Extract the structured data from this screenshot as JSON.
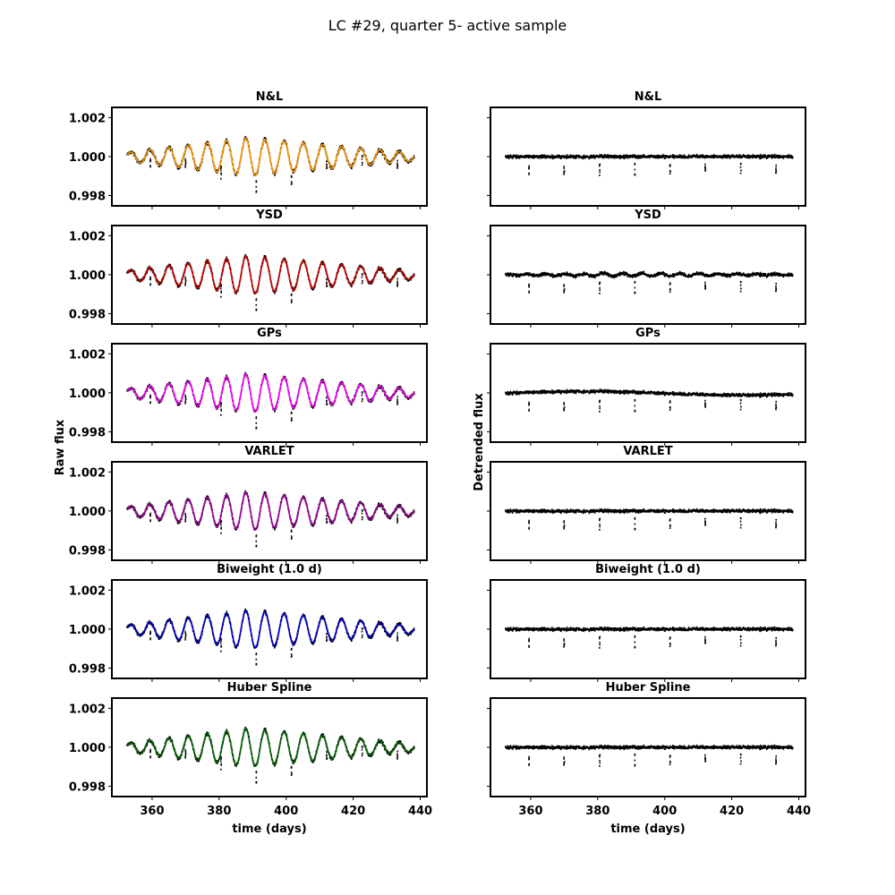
{
  "suptitle": "LC #29, quarter 5- active sample",
  "left_ylabel": "Raw flux",
  "right_ylabel": "Detrended flux",
  "xlabel": "time (days)",
  "chart_data": {
    "type": "scatter",
    "x_range": [
      348,
      442
    ],
    "x_ticks": [
      360,
      380,
      400,
      420,
      440
    ],
    "raw_y_range": [
      0.99747,
      1.00252
    ],
    "raw_y_ticks": [
      0.998,
      1.0,
      1.002
    ],
    "raw_y_tick_labels": [
      "0.998",
      "1.000",
      "1.002"
    ],
    "time_start": 352.5,
    "time_end": 438.2,
    "stellar_variability": {
      "mean": 0.99998,
      "period_days": 5.72,
      "amp_start": 0.00045,
      "amp_peak": 0.00195,
      "amp_peak_time": 389,
      "amp_end": 0.0004
    },
    "transits": {
      "times": [
        359.5,
        370.0,
        380.6,
        391.1,
        401.6,
        412.1,
        422.7,
        433.2
      ],
      "depth_approx": 0.0008
    },
    "panels": [
      {
        "name": "N&L",
        "trend_color": "#ff9900",
        "detrended_scatter": "flat"
      },
      {
        "name": "YSD",
        "trend_color": "#cc0000",
        "detrended_scatter": "wavy"
      },
      {
        "name": "GPs",
        "trend_color": "#ff00ff",
        "detrended_scatter": "offset"
      },
      {
        "name": "VARLET",
        "trend_color": "#a000a0",
        "detrended_scatter": "flat"
      },
      {
        "name": "Biweight (1.0 d)",
        "trend_color": "#0000cc",
        "detrended_scatter": "flat"
      },
      {
        "name": "Huber Spline",
        "trend_color": "#006400",
        "detrended_scatter": "flat"
      }
    ]
  }
}
